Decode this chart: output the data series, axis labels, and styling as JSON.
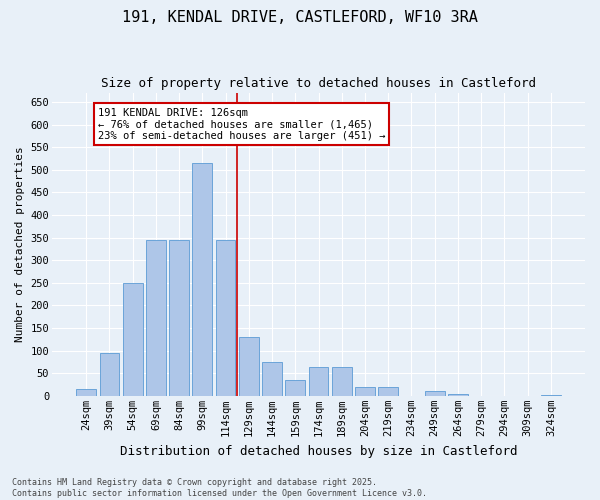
{
  "title": "191, KENDAL DRIVE, CASTLEFORD, WF10 3RA",
  "subtitle": "Size of property relative to detached houses in Castleford",
  "xlabel": "Distribution of detached houses by size in Castleford",
  "ylabel": "Number of detached properties",
  "categories": [
    "24sqm",
    "39sqm",
    "54sqm",
    "69sqm",
    "84sqm",
    "99sqm",
    "114sqm",
    "129sqm",
    "144sqm",
    "159sqm",
    "174sqm",
    "189sqm",
    "204sqm",
    "219sqm",
    "234sqm",
    "249sqm",
    "264sqm",
    "279sqm",
    "294sqm",
    "309sqm",
    "324sqm"
  ],
  "values": [
    15,
    95,
    250,
    345,
    345,
    515,
    345,
    130,
    75,
    35,
    65,
    65,
    20,
    20,
    0,
    10,
    5,
    0,
    0,
    0,
    2
  ],
  "bar_color": "#aec6e8",
  "bar_edge_color": "#5b9bd5",
  "vline_color": "#cc0000",
  "vline_x": 6.5,
  "annotation_text": "191 KENDAL DRIVE: 126sqm\n← 76% of detached houses are smaller (1,465)\n23% of semi-detached houses are larger (451) →",
  "annotation_box_color": "white",
  "annotation_box_edge": "#cc0000",
  "ylim": [
    0,
    670
  ],
  "yticks": [
    0,
    50,
    100,
    150,
    200,
    250,
    300,
    350,
    400,
    450,
    500,
    550,
    600,
    650
  ],
  "background_color": "#e8f0f8",
  "plot_bg_color": "#e8f0f8",
  "footer_text": "Contains HM Land Registry data © Crown copyright and database right 2025.\nContains public sector information licensed under the Open Government Licence v3.0.",
  "title_fontsize": 11,
  "subtitle_fontsize": 9,
  "xlabel_fontsize": 9,
  "ylabel_fontsize": 8,
  "tick_fontsize": 7.5,
  "annotation_fontsize": 7.5,
  "footer_fontsize": 6
}
